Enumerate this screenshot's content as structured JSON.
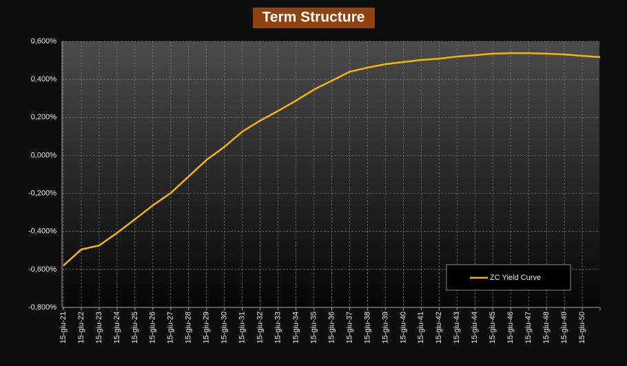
{
  "chart_data": {
    "type": "line",
    "title": "Term Structure",
    "categories": [
      "15-giu-21",
      "15-giu-22",
      "15-giu-23",
      "15-giu-24",
      "15-giu-25",
      "15-giu-26",
      "15-giu-27",
      "15-giu-28",
      "15-giu-29",
      "15-giu-30",
      "15-giu-31",
      "15-giu-32",
      "15-giu-33",
      "15-giu-34",
      "15-giu-35",
      "15-giu-36",
      "15-giu-37",
      "15-giu-38",
      "15-giu-39",
      "15-giu-40",
      "15-giu-41",
      "15-giu-42",
      "15-giu-43",
      "15-giu-44",
      "15-giu-45",
      "15-giu-46",
      "15-giu-47",
      "15-giu-48",
      "15-giu-49",
      "15-giu-50",
      null
    ],
    "series": [
      {
        "name": "ZC Yield Curve",
        "color": "#f5b50e",
        "values": [
          -0.58,
          -0.495,
          -0.474,
          -0.408,
          -0.336,
          -0.263,
          -0.198,
          -0.111,
          -0.024,
          0.045,
          0.125,
          0.183,
          0.234,
          0.288,
          0.346,
          0.393,
          0.44,
          0.462,
          0.48,
          0.491,
          0.502,
          0.509,
          0.52,
          0.527,
          0.535,
          0.538,
          0.538,
          0.535,
          0.531,
          0.524,
          0.517
        ]
      }
    ],
    "ylim": [
      -0.8,
      0.6
    ],
    "yticks": [
      {
        "value": -0.8,
        "label": "-0,800%"
      },
      {
        "value": -0.6,
        "label": "-0,600%"
      },
      {
        "value": -0.4,
        "label": "-0,400%"
      },
      {
        "value": -0.2,
        "label": "-0,200%"
      },
      {
        "value": 0,
        "label": "0,000%"
      },
      {
        "value": 0.2,
        "label": "0,200%"
      },
      {
        "value": 0.4,
        "label": "0,400%"
      },
      {
        "value": 0.6,
        "label": "0,600%"
      }
    ],
    "grid": true,
    "legend": "lower right"
  }
}
